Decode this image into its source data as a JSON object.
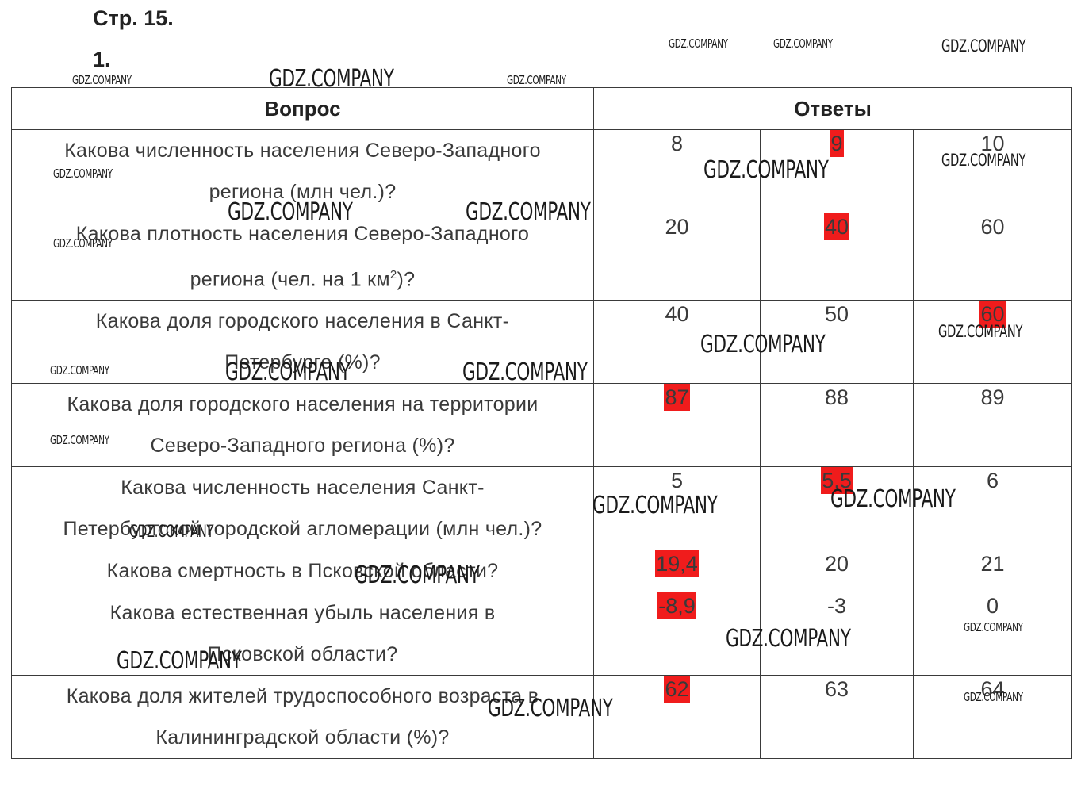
{
  "page": {
    "title": "Стр. 15.",
    "task_number": "1."
  },
  "table": {
    "headers": {
      "question": "Вопрос",
      "answers": "Ответы"
    },
    "rows": [
      {
        "q1": "Какова численность населения Северо-Западного",
        "q2": "региона (млн чел.)?",
        "answers": [
          "8",
          "9",
          "10"
        ],
        "correct": 1
      },
      {
        "q1": "Какова плотность населения Северо-Западного",
        "q2": "региона (чел. на 1 км",
        "q2_sup": "2",
        "q2_end": ")?",
        "answers": [
          "20",
          "40",
          "60"
        ],
        "correct": 1
      },
      {
        "q1": "Какова доля городского населения в Санкт-",
        "q2": "Петербурге (%)?",
        "answers": [
          "40",
          "50",
          "60"
        ],
        "correct": 2
      },
      {
        "q1": "Какова доля городского населения на территории",
        "q2": "Северо-Западного региона (%)?",
        "answers": [
          "87",
          "88",
          "89"
        ],
        "correct": 0
      },
      {
        "q1": "Какова численность населения Санкт-",
        "q2": "Петербургской городской агломерации (млн чел.)?",
        "answers": [
          "5",
          "5,5",
          "6"
        ],
        "correct": 1
      },
      {
        "q1": "Какова смертность в Псковской области?",
        "answers": [
          "19,4",
          "20",
          "21"
        ],
        "correct": 0
      },
      {
        "q1": "Какова естественная убыль населения в",
        "q2": "Псковской области?",
        "answers": [
          "-8,9",
          "-3",
          "0"
        ],
        "correct": 0
      },
      {
        "q1": "Какова доля жителей трудоспособного возраста в",
        "q2": "Калининградской области (%)?",
        "answers": [
          "62",
          "63",
          "64"
        ],
        "correct": 0
      }
    ]
  },
  "watermark": {
    "text": "GDZ.COMPANY"
  },
  "colors": {
    "highlight": "#f01c1c",
    "text": "#333333",
    "border": "#3a3a3a"
  }
}
